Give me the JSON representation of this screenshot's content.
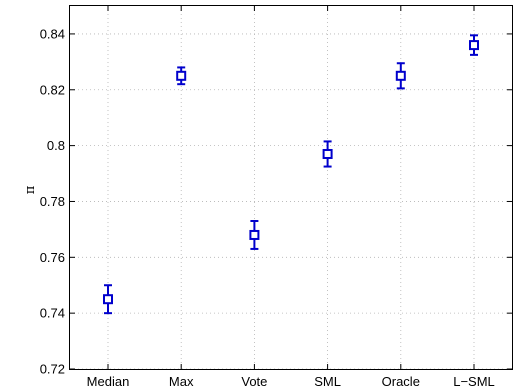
{
  "chart_data": {
    "type": "scatter",
    "categories": [
      "Median",
      "Max",
      "Vote",
      "SML",
      "Oracle",
      "L−SML"
    ],
    "values": [
      0.745,
      0.825,
      0.768,
      0.797,
      0.825,
      0.836
    ],
    "errors": [
      0.005,
      0.003,
      0.005,
      0.0045,
      0.0045,
      0.0035
    ],
    "xlabel": "",
    "ylabel": "π",
    "ylim": [
      0.72,
      0.85
    ],
    "yticks": [
      "0.72",
      "0.74",
      "0.76",
      "0.78",
      "0.8",
      "0.82",
      "0.84"
    ],
    "grid": true,
    "marker": "square",
    "color": "#0000cc"
  }
}
